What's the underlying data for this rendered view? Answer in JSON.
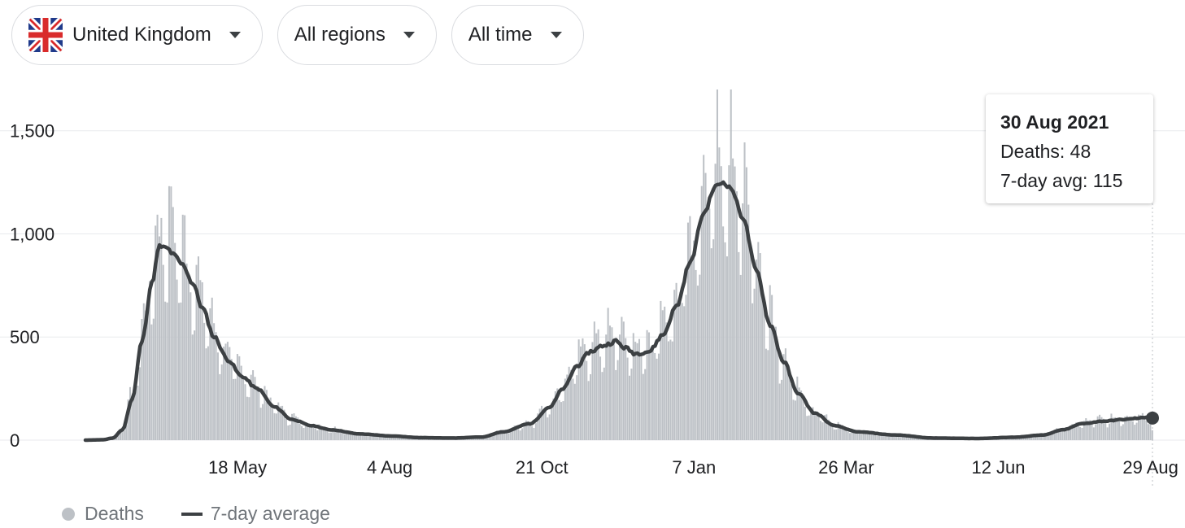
{
  "filters": {
    "country": "United Kingdom",
    "region": "All regions",
    "time": "All time"
  },
  "colors": {
    "bars": "#bdc1c6",
    "avg_line": "#3c4043",
    "grid": "#e8eaed",
    "flag_blue": "#1f3a8a",
    "flag_red": "#d92b2b"
  },
  "icons": {
    "flag": "uk-flag-icon",
    "dropdown": "caret-down-icon"
  },
  "tooltip": {
    "date": "30 Aug 2021",
    "deaths": "Deaths: 48",
    "avg": "7-day avg: 115"
  },
  "legend": {
    "deaths": "Deaths",
    "avg": "7-day average"
  },
  "chart_data": {
    "type": "bar",
    "xlabel": "",
    "ylabel": "",
    "ylim": [
      0,
      1700
    ],
    "y_ticks": [
      {
        "value": 0,
        "label": "0"
      },
      {
        "value": 500,
        "label": "500"
      },
      {
        "value": 1000,
        "label": "1,000"
      },
      {
        "value": 1500,
        "label": "1,500"
      }
    ],
    "x_range": [
      "2020-03-01",
      "2021-08-30"
    ],
    "x_ticks": [
      {
        "date": "2020-05-18",
        "label": "18 May"
      },
      {
        "date": "2020-08-04",
        "label": "4 Aug"
      },
      {
        "date": "2020-10-21",
        "label": "21 Oct"
      },
      {
        "date": "2021-01-07",
        "label": "7 Jan"
      },
      {
        "date": "2021-03-26",
        "label": "26 Mar"
      },
      {
        "date": "2021-06-12",
        "label": "12 Jun"
      },
      {
        "date": "2021-08-29",
        "label": "29 Aug"
      }
    ],
    "grid": true,
    "legend_position": "bottom-left",
    "series": [
      {
        "name": "7-day average",
        "kind": "line",
        "points": [
          [
            "2020-03-01",
            0
          ],
          [
            "2020-03-10",
            2
          ],
          [
            "2020-03-15",
            10
          ],
          [
            "2020-03-20",
            50
          ],
          [
            "2020-03-25",
            200
          ],
          [
            "2020-03-30",
            480
          ],
          [
            "2020-04-04",
            760
          ],
          [
            "2020-04-08",
            940
          ],
          [
            "2020-04-12",
            930
          ],
          [
            "2020-04-15",
            900
          ],
          [
            "2020-04-20",
            850
          ],
          [
            "2020-04-25",
            760
          ],
          [
            "2020-04-30",
            640
          ],
          [
            "2020-05-06",
            500
          ],
          [
            "2020-05-13",
            390
          ],
          [
            "2020-05-20",
            310
          ],
          [
            "2020-05-28",
            250
          ],
          [
            "2020-06-06",
            160
          ],
          [
            "2020-06-15",
            100
          ],
          [
            "2020-06-25",
            70
          ],
          [
            "2020-07-05",
            50
          ],
          [
            "2020-07-20",
            30
          ],
          [
            "2020-08-05",
            20
          ],
          [
            "2020-08-20",
            12
          ],
          [
            "2020-09-05",
            10
          ],
          [
            "2020-09-20",
            15
          ],
          [
            "2020-10-01",
            40
          ],
          [
            "2020-10-15",
            80
          ],
          [
            "2020-10-25",
            160
          ],
          [
            "2020-11-01",
            250
          ],
          [
            "2020-11-08",
            360
          ],
          [
            "2020-11-15",
            430
          ],
          [
            "2020-11-22",
            460
          ],
          [
            "2020-11-28",
            480
          ],
          [
            "2020-12-02",
            450
          ],
          [
            "2020-12-08",
            420
          ],
          [
            "2020-12-15",
            430
          ],
          [
            "2020-12-22",
            510
          ],
          [
            "2020-12-29",
            650
          ],
          [
            "2021-01-05",
            860
          ],
          [
            "2021-01-12",
            1100
          ],
          [
            "2021-01-18",
            1230
          ],
          [
            "2021-01-22",
            1250
          ],
          [
            "2021-01-26",
            1220
          ],
          [
            "2021-02-01",
            1080
          ],
          [
            "2021-02-08",
            820
          ],
          [
            "2021-02-15",
            560
          ],
          [
            "2021-02-22",
            380
          ],
          [
            "2021-03-01",
            230
          ],
          [
            "2021-03-10",
            130
          ],
          [
            "2021-03-20",
            70
          ],
          [
            "2021-04-01",
            40
          ],
          [
            "2021-04-20",
            25
          ],
          [
            "2021-05-10",
            10
          ],
          [
            "2021-06-01",
            8
          ],
          [
            "2021-06-20",
            14
          ],
          [
            "2021-07-05",
            25
          ],
          [
            "2021-07-15",
            50
          ],
          [
            "2021-07-25",
            80
          ],
          [
            "2021-08-05",
            92
          ],
          [
            "2021-08-15",
            100
          ],
          [
            "2021-08-22",
            106
          ],
          [
            "2021-08-30",
            115
          ]
        ]
      },
      {
        "name": "Deaths",
        "kind": "bars",
        "note": "daily bars approximated as 7-day average with weekly reporting pattern; peaks ~1,230 (Apr 2020) and ~1,700 (Jan 2021)"
      }
    ],
    "highlight": {
      "date": "2021-08-30",
      "deaths": 48,
      "avg": 115
    }
  }
}
